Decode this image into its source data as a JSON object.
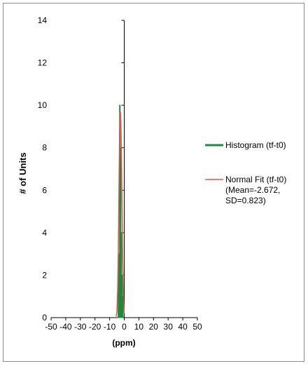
{
  "chart_data": {
    "type": "line",
    "title": "",
    "xlabel": "(ppm)",
    "ylabel": "# of Units",
    "xlim": [
      -50,
      50
    ],
    "ylim": [
      0,
      14
    ],
    "x_ticks": [
      -50,
      -40,
      -30,
      -20,
      -10,
      0,
      10,
      20,
      30,
      40,
      50
    ],
    "y_ticks": [
      0,
      2,
      4,
      6,
      8,
      10,
      12,
      14
    ],
    "grid": false,
    "legend_position": "right",
    "series": [
      {
        "name": "Histogram (tf-t0)",
        "color": "#1e8a3c",
        "style": "step",
        "x": [
          -4,
          -3.5,
          -3,
          -2.5,
          -2,
          -1.5,
          -1
        ],
        "y": [
          2,
          3,
          10,
          8,
          4,
          2,
          1
        ]
      },
      {
        "name": "Normal Fit (tf-t0)",
        "label_lines": [
          "Normal Fit (tf-t0)",
          "(Mean=-2.672,",
          "SD=0.823)"
        ],
        "color": "#e0554a",
        "style": "line",
        "mean": -2.672,
        "sd": 0.823,
        "x": [
          -5.5,
          -5,
          -4.5,
          -4,
          -3.5,
          -3.2,
          -3,
          -2.8,
          -2.672,
          -2.5,
          -2.3,
          -2,
          -1.5,
          -1,
          -0.5,
          0
        ],
        "y": [
          0.05,
          0.3,
          1.3,
          3.4,
          6.7,
          8.5,
          9.2,
          9.6,
          9.7,
          9.6,
          9.2,
          8.1,
          5.3,
          2.6,
          0.9,
          0.2
        ]
      }
    ]
  }
}
